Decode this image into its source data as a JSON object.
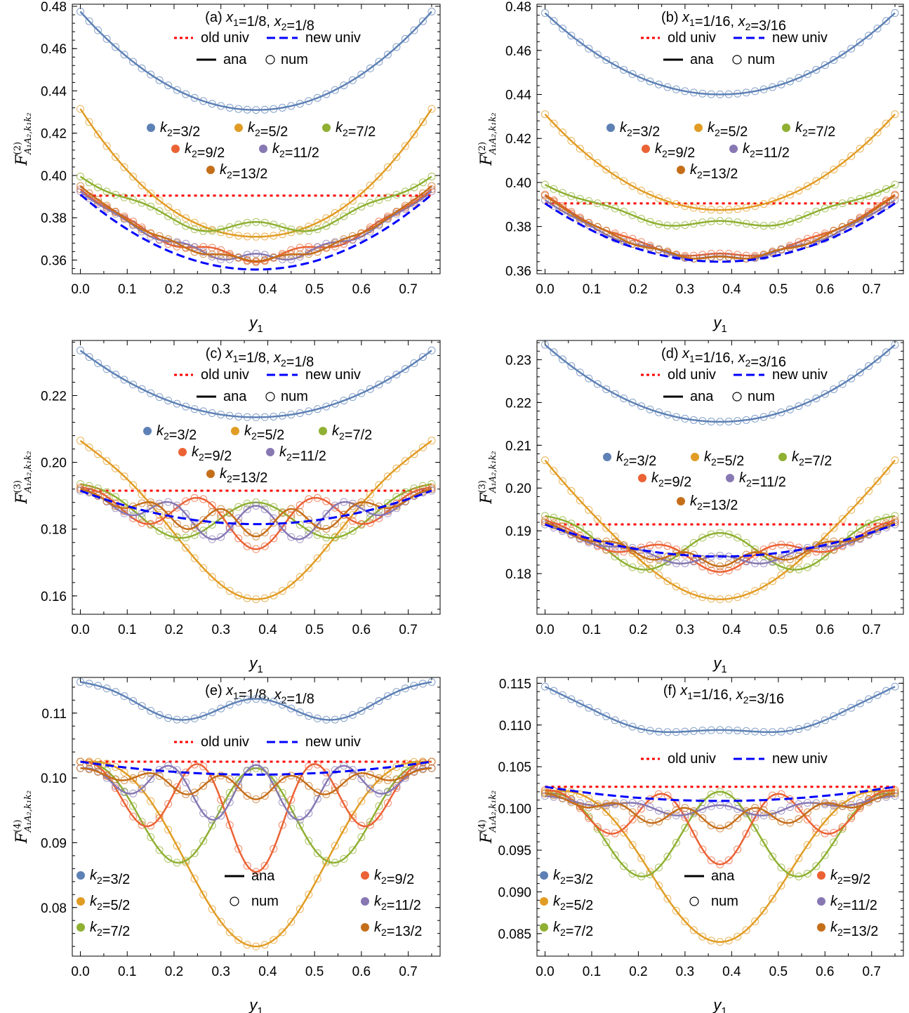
{
  "colors": {
    "k3": "#5e81b5",
    "k5": "#e19c24",
    "k7": "#8fb032",
    "k9": "#eb6235",
    "k11": "#8778b3",
    "k13": "#c56e1a",
    "old": "#ff0000",
    "new": "#0000ff",
    "ana": "#000000",
    "frame": "#000000"
  },
  "legend": {
    "old": "old univ",
    "new": "new univ",
    "ana": "ana",
    "num": "num"
  },
  "series_labels": {
    "k3": "k2=3/2",
    "k5": "k2=5/2",
    "k7": "k2=7/2",
    "k9": "k2=9/2",
    "k11": "k2=11/2",
    "k13": "k2=13/2"
  },
  "chart_data": [
    {
      "type": "line",
      "title": "(a) x1=1/8, x2=1/8",
      "xlabel": "y1",
      "ylabel": "F^(2)_{A1A2,k1k2}",
      "xlim": [
        0,
        0.75
      ],
      "ylim": [
        0.3535,
        0.481
      ],
      "yticks": [
        "0.36",
        "0.38",
        "0.40",
        "0.42",
        "0.44",
        "0.46",
        "0.48"
      ],
      "xticks": [
        "0.0",
        "0.1",
        "0.2",
        "0.3",
        "0.4",
        "0.5",
        "0.6",
        "0.7"
      ],
      "old_univ": 0.3905,
      "new_univ": {
        "endpoints": 0.391,
        "center": 0.3555
      },
      "curves": {
        "k3": {
          "end": 0.4775,
          "center": 0.431,
          "freq": 0,
          "amp": 0
        },
        "k5": {
          "end": 0.4315,
          "center": 0.3695,
          "freq": 1,
          "amp": 0.0015
        },
        "k7": {
          "end": 0.3995,
          "center": 0.3745,
          "freq": 3,
          "amp": 0.0035
        },
        "k9": {
          "end": 0.3935,
          "center": 0.3615,
          "freq": 4,
          "amp": -0.0025
        },
        "k11": {
          "end": 0.3925,
          "center": 0.361,
          "freq": 5,
          "amp": 0.002
        },
        "k13": {
          "end": 0.395,
          "center": 0.3605,
          "freq": 6,
          "amp": -0.001
        }
      }
    },
    {
      "type": "line",
      "title": "(b) x1=1/16, x2=3/16",
      "xlabel": "y1",
      "ylabel": "F^(2)_{A1A2,k1k2}",
      "xlim": [
        0,
        0.75
      ],
      "ylim": [
        0.3585,
        0.481
      ],
      "yticks": [
        "0.36",
        "0.38",
        "0.40",
        "0.42",
        "0.44",
        "0.46",
        "0.48"
      ],
      "xticks": [
        "0.0",
        "0.1",
        "0.2",
        "0.3",
        "0.4",
        "0.5",
        "0.6",
        "0.7"
      ],
      "old_univ": 0.3905,
      "new_univ": {
        "endpoints": 0.3905,
        "center": 0.364
      },
      "curves": {
        "k3": {
          "end": 0.477,
          "center": 0.44,
          "freq": 0,
          "amp": 0
        },
        "k5": {
          "end": 0.431,
          "center": 0.3875,
          "freq": 0,
          "amp": 0
        },
        "k7": {
          "end": 0.399,
          "center": 0.3805,
          "freq": 3,
          "amp": 0.002
        },
        "k9": {
          "end": 0.3945,
          "center": 0.3665,
          "freq": 4,
          "amp": 0.0012
        },
        "k11": {
          "end": 0.392,
          "center": 0.3655,
          "freq": 5,
          "amp": 0.001
        },
        "k13": {
          "end": 0.394,
          "center": 0.3655,
          "freq": 6,
          "amp": 0.0008
        }
      }
    },
    {
      "type": "line",
      "title": "(c) x1=1/8, x2=1/8",
      "xlabel": "y1",
      "ylabel": "F^(3)_{A1A2,k1k2}",
      "xlim": [
        0,
        0.75
      ],
      "ylim": [
        0.1545,
        0.2365
      ],
      "yticks": [
        "0.16",
        "0.18",
        "0.20",
        "0.22"
      ],
      "xticks": [
        "0.0",
        "0.1",
        "0.2",
        "0.3",
        "0.4",
        "0.5",
        "0.6",
        "0.7"
      ],
      "old_univ": 0.1915,
      "new_univ": {
        "endpoints": 0.1915,
        "center": 0.1815
      },
      "curves": {
        "k3": {
          "end": 0.2335,
          "center": 0.2135,
          "freq": 0,
          "amp": 0
        },
        "k5": {
          "end": 0.2065,
          "center": 0.1725,
          "freq": 1,
          "amp": -0.0135
        },
        "k7": {
          "end": 0.1935,
          "center": 0.1805,
          "freq": 2,
          "amp": 0.0075
        },
        "k9": {
          "end": 0.1925,
          "center": 0.1815,
          "freq": 3,
          "amp": -0.0075
        },
        "k11": {
          "end": 0.1915,
          "center": 0.1815,
          "freq": 4,
          "amp": 0.0055
        },
        "k13": {
          "end": 0.192,
          "center": 0.1818,
          "freq": 5,
          "amp": -0.004
        }
      }
    },
    {
      "type": "line",
      "title": "(d) x1=1/16, x2=3/16",
      "xlabel": "y1",
      "ylabel": "F^(3)_{A1A2,k1k2}",
      "xlim": [
        0,
        0.75
      ],
      "ylim": [
        0.1705,
        0.2345
      ],
      "yticks": [
        "0.18",
        "0.19",
        "0.20",
        "0.21",
        "0.22",
        "0.23"
      ],
      "xticks": [
        "0.0",
        "0.1",
        "0.2",
        "0.3",
        "0.4",
        "0.5",
        "0.6",
        "0.7"
      ],
      "old_univ": 0.1915,
      "new_univ": {
        "endpoints": 0.1915,
        "center": 0.184
      },
      "curves": {
        "k3": {
          "end": 0.2335,
          "center": 0.2155,
          "freq": 0,
          "amp": 0
        },
        "k5": {
          "end": 0.2065,
          "center": 0.1775,
          "freq": 1,
          "amp": -0.0035
        },
        "k7": {
          "end": 0.1935,
          "center": 0.1835,
          "freq": 2,
          "amp": 0.006
        },
        "k9": {
          "end": 0.1925,
          "center": 0.1832,
          "freq": 3,
          "amp": -0.0028
        },
        "k11": {
          "end": 0.1915,
          "center": 0.183,
          "freq": 4,
          "amp": 0.0012
        },
        "k13": {
          "end": 0.192,
          "center": 0.1832,
          "freq": 5,
          "amp": -0.0015
        }
      }
    },
    {
      "type": "line",
      "title": "(e) x1=1/8, x2=1/8",
      "xlabel": "y1",
      "ylabel": "F^(4)_{A1A2,k1k2}",
      "xlim": [
        0,
        0.75
      ],
      "ylim": [
        0.0725,
        0.1155
      ],
      "yticks": [
        "0.08",
        "0.09",
        "0.10",
        "0.11"
      ],
      "xticks": [
        "0.0",
        "0.1",
        "0.2",
        "0.3",
        "0.4",
        "0.5",
        "0.6",
        "0.7"
      ],
      "old_univ": 0.1025,
      "new_univ": {
        "endpoints": 0.1025,
        "center": 0.1005
      },
      "curves": {
        "k3": {
          "end": 0.1148,
          "center": 0.1098,
          "freq": 2,
          "amp": 0.0024
        },
        "k5": {
          "end": 0.1025,
          "center": 0.0885,
          "freq": 1,
          "amp": -0.0145
        },
        "k7": {
          "end": 0.1025,
          "center": 0.092,
          "freq": 2,
          "amp": 0.0095
        },
        "k9": {
          "end": 0.1025,
          "center": 0.0938,
          "freq": 3,
          "amp": -0.0083
        },
        "k11": {
          "end": 0.1015,
          "center": 0.0975,
          "freq": 4,
          "amp": 0.0045
        },
        "k13": {
          "end": 0.1015,
          "center": 0.0985,
          "freq": 5,
          "amp": -0.0018
        }
      }
    },
    {
      "type": "line",
      "title": "(f) x1=1/16, x2=3/16",
      "xlabel": "y1",
      "ylabel": "F^(4)_{A1A2,k1k2}",
      "xlim": [
        0,
        0.75
      ],
      "ylim": [
        0.0823,
        0.1157
      ],
      "yticks": [
        "0.085",
        "0.090",
        "0.095",
        "0.100",
        "0.105",
        "0.110",
        "0.115"
      ],
      "xticks": [
        "0.0",
        "0.1",
        "0.2",
        "0.3",
        "0.4",
        "0.5",
        "0.6",
        "0.7"
      ],
      "old_univ": 0.1026,
      "new_univ": {
        "endpoints": 0.1026,
        "center": 0.1009
      },
      "curves": {
        "k3": {
          "end": 0.1146,
          "center": 0.1088,
          "freq": 2,
          "amp": 0.0006
        },
        "k5": {
          "end": 0.102,
          "center": 0.0935,
          "freq": 1,
          "amp": -0.0095
        },
        "k7": {
          "end": 0.1018,
          "center": 0.0955,
          "freq": 2,
          "amp": 0.0065
        },
        "k9": {
          "end": 0.1022,
          "center": 0.0975,
          "freq": 3,
          "amp": -0.0042
        },
        "k11": {
          "end": 0.1015,
          "center": 0.0997,
          "freq": 4,
          "amp": 0.0007
        },
        "k13": {
          "end": 0.1018,
          "center": 0.0988,
          "freq": 5,
          "amp": -0.0012
        }
      }
    }
  ]
}
